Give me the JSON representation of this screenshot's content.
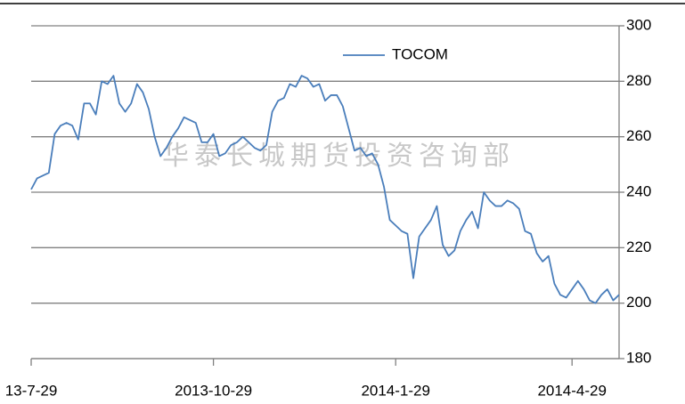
{
  "chart_data": {
    "type": "line",
    "watermark": "华泰长城期货投资咨询部",
    "categories": [
      "13-7-29",
      null,
      null,
      null,
      null,
      null,
      null,
      null,
      null,
      null,
      null,
      null,
      null,
      null,
      null,
      null,
      null,
      null,
      null,
      null,
      null,
      null,
      null,
      null,
      null,
      null,
      null,
      null,
      null,
      null,
      null,
      "2013-10-29",
      null,
      null,
      null,
      null,
      null,
      null,
      null,
      null,
      null,
      null,
      null,
      null,
      null,
      null,
      null,
      null,
      null,
      null,
      null,
      null,
      null,
      null,
      null,
      null,
      null,
      null,
      null,
      null,
      null,
      null,
      "2014-1-29",
      null,
      null,
      null,
      null,
      null,
      null,
      null,
      null,
      null,
      null,
      null,
      null,
      null,
      null,
      null,
      null,
      null,
      null,
      null,
      null,
      null,
      null,
      null,
      null,
      null,
      null,
      null,
      null,
      null,
      "2014-4-29",
      null,
      null,
      null,
      null,
      null,
      null,
      null,
      null
    ],
    "series": [
      {
        "name": "TOCOM",
        "color": "#4a7ebb",
        "values": [
          241,
          245,
          246,
          247,
          261,
          264,
          265,
          264,
          259,
          272,
          272,
          268,
          280,
          279,
          282,
          272,
          269,
          272,
          279,
          276,
          270,
          260,
          253,
          256,
          260,
          263,
          267,
          266,
          265,
          258,
          258,
          261,
          253,
          254,
          257,
          258,
          260,
          258,
          256,
          255,
          257,
          269,
          273,
          274,
          279,
          278,
          282,
          281,
          278,
          279,
          273,
          275,
          275,
          271,
          263,
          255,
          256,
          253,
          254,
          250,
          242,
          230,
          228,
          226,
          225,
          209,
          224,
          227,
          230,
          235,
          221,
          217,
          219,
          226,
          230,
          233,
          227,
          240,
          237,
          235,
          235,
          237,
          236,
          234,
          226,
          225,
          218,
          215,
          217,
          207,
          203,
          202,
          205,
          208,
          205,
          201,
          200,
          203,
          205,
          201,
          203
        ]
      }
    ],
    "ylim": [
      180,
      300
    ],
    "yticks": [
      180,
      200,
      220,
      240,
      260,
      280,
      300
    ],
    "grid": true,
    "legend": "top"
  }
}
